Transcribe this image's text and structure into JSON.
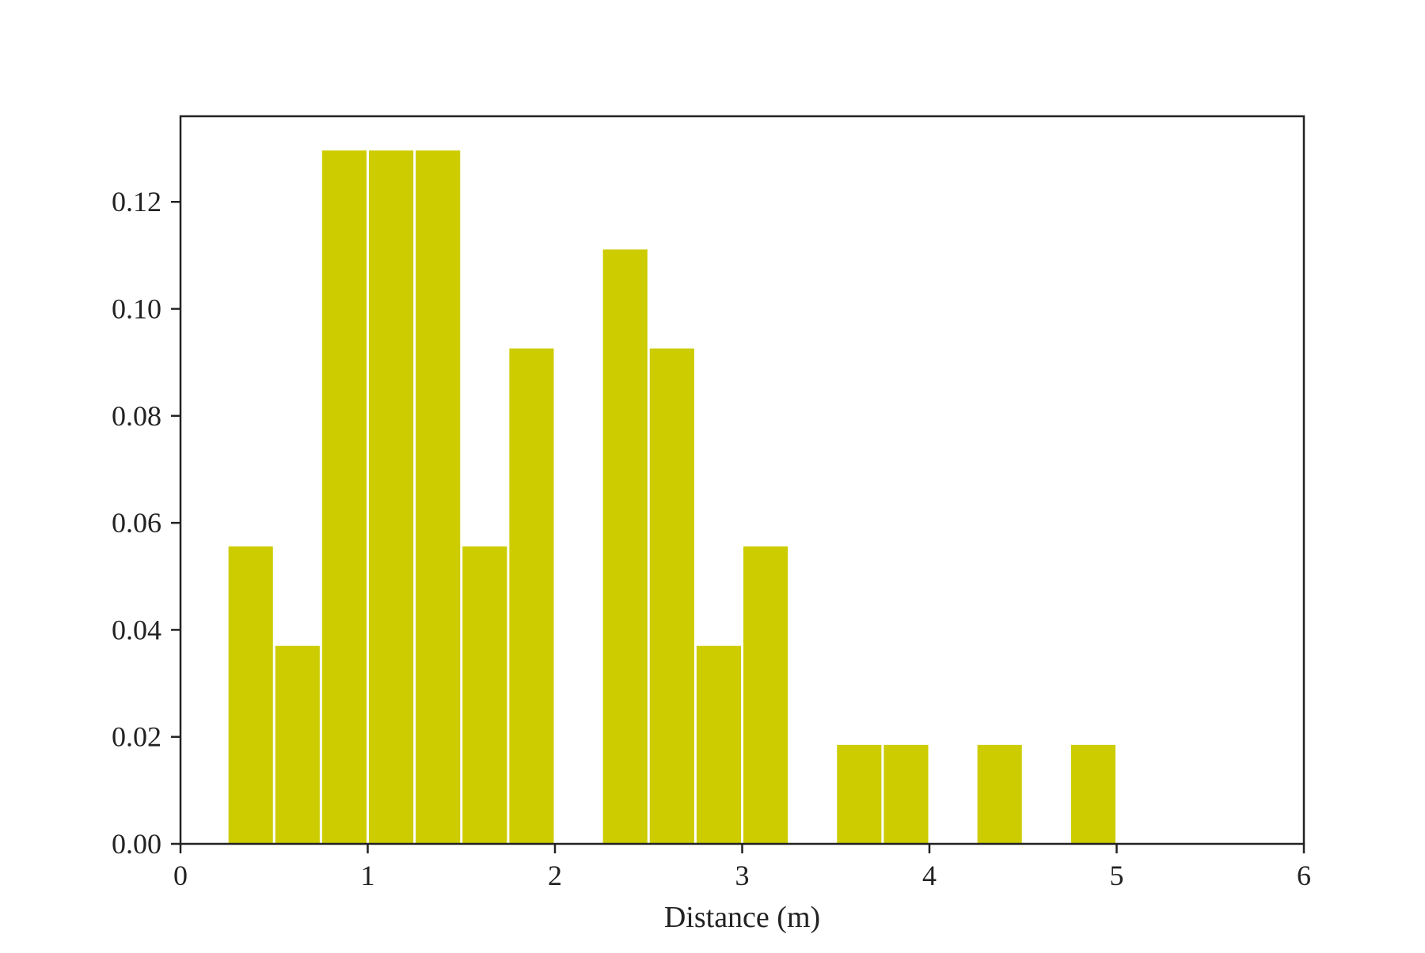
{
  "chart_data": {
    "type": "bar",
    "title": "",
    "xlabel": "Distance (m)",
    "ylabel": "",
    "xlim": [
      0,
      6
    ],
    "ylim": [
      0,
      0.136
    ],
    "xticks": [
      "0",
      "1",
      "2",
      "3",
      "4",
      "5",
      "6"
    ],
    "yticks": [
      "0.00",
      "0.02",
      "0.04",
      "0.06",
      "0.08",
      "0.10",
      "0.12"
    ],
    "grid": false,
    "legend": "none",
    "bar_color": "#cccc00",
    "bin_width": 0.25,
    "bins": [
      {
        "x0": 0.25,
        "value": 0.0556
      },
      {
        "x0": 0.5,
        "value": 0.037
      },
      {
        "x0": 0.75,
        "value": 0.1296
      },
      {
        "x0": 1.0,
        "value": 0.1296
      },
      {
        "x0": 1.25,
        "value": 0.1296
      },
      {
        "x0": 1.5,
        "value": 0.0556
      },
      {
        "x0": 1.75,
        "value": 0.0926
      },
      {
        "x0": 2.25,
        "value": 0.1111
      },
      {
        "x0": 2.5,
        "value": 0.0926
      },
      {
        "x0": 2.75,
        "value": 0.037
      },
      {
        "x0": 3.0,
        "value": 0.0556
      },
      {
        "x0": 3.5,
        "value": 0.0185
      },
      {
        "x0": 3.75,
        "value": 0.0185
      },
      {
        "x0": 4.25,
        "value": 0.0185
      },
      {
        "x0": 4.75,
        "value": 0.0185
      }
    ]
  }
}
